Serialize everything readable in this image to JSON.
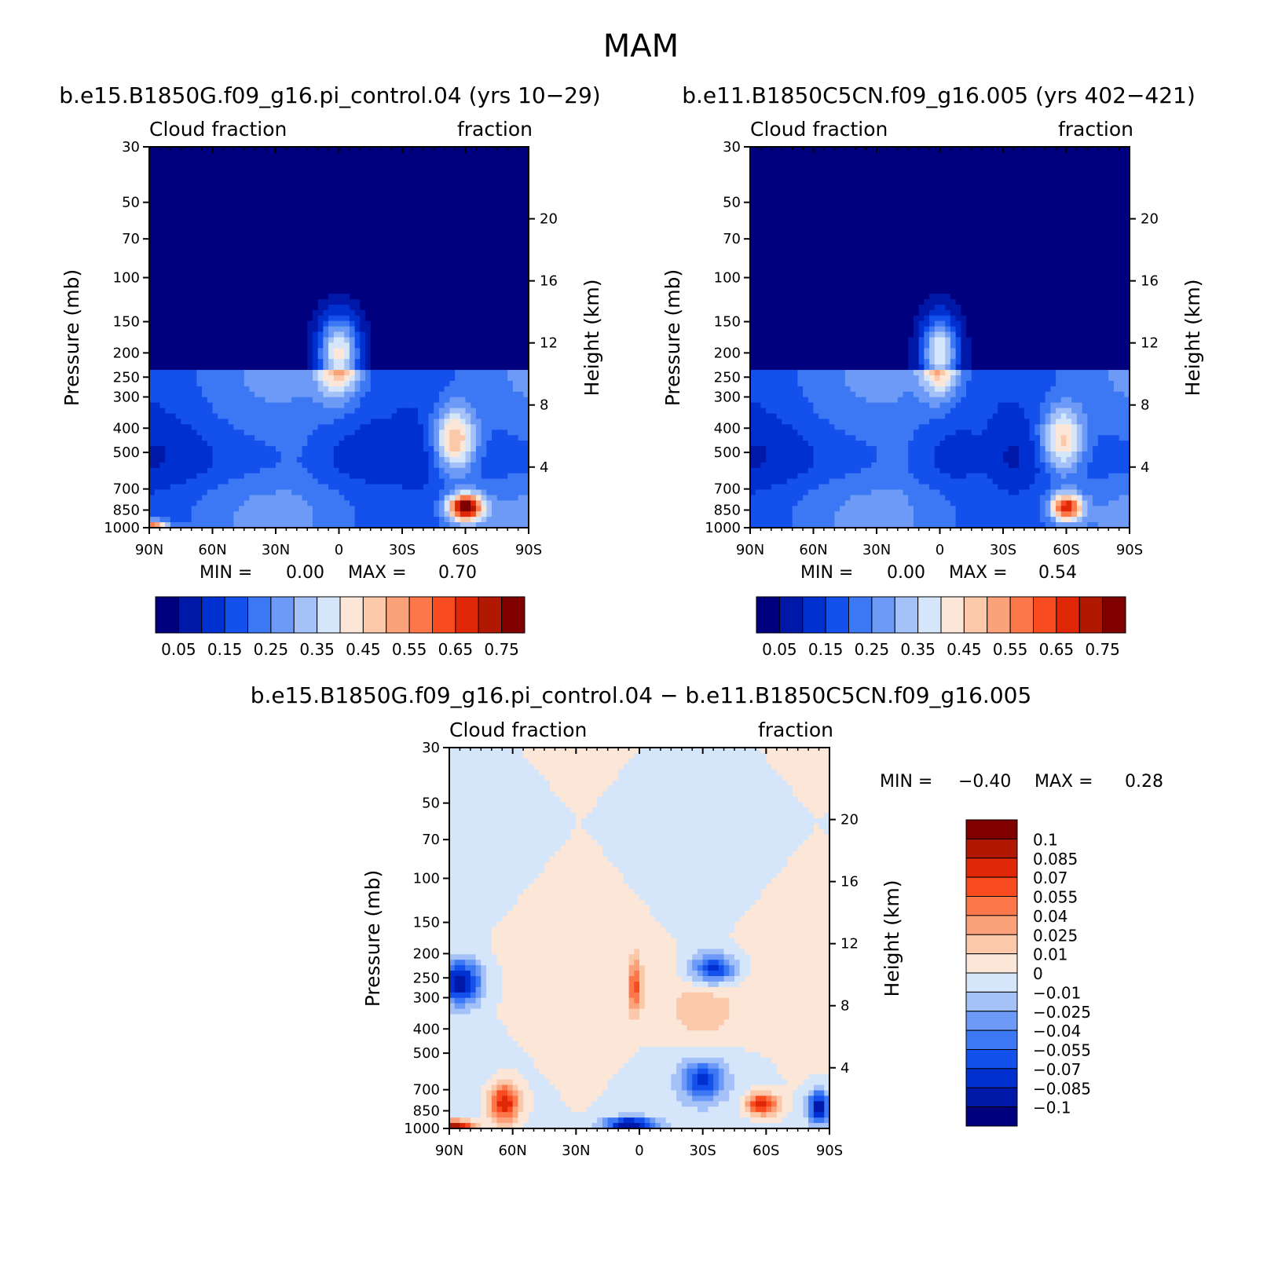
{
  "figure": {
    "season": "MAM",
    "diff_title": "b.e15.B1850G.f09_g16.pi_control.04 − b.e11.B1850C5CN.f09_g16.005"
  },
  "panels": [
    {
      "title": "b.e15.B1850G.f09_g16.pi_control.04 (yrs 10−29)",
      "left_string": "Cloud fraction",
      "right_string": "fraction",
      "min_label": "MIN =",
      "min_value": "0.00",
      "max_label": "MAX =",
      "max_value": "0.70"
    },
    {
      "title": "b.e11.B1850C5CN.f09_g16.005 (yrs 402−421)",
      "left_string": "Cloud fraction",
      "right_string": "fraction",
      "min_label": "MIN =",
      "min_value": "0.00",
      "max_label": "MAX =",
      "max_value": "0.54"
    },
    {
      "title": "b.e15.B1850G.f09_g16.pi_control.04 − b.e11.B1850C5CN.f09_g16.005",
      "left_string": "Cloud fraction",
      "right_string": "fraction",
      "min_label": "MIN =",
      "min_value": "−0.40",
      "max_label": "MAX =",
      "max_value": "0.28"
    }
  ],
  "axes": {
    "ylabel": "Pressure (mb)",
    "y2label": "Height (km)",
    "pressure_ticks": [
      "30",
      "50",
      "70",
      "100",
      "150",
      "200",
      "250",
      "300",
      "400",
      "500",
      "700",
      "850",
      "1000"
    ],
    "pressure_values": [
      30,
      50,
      70,
      100,
      150,
      200,
      250,
      300,
      400,
      500,
      700,
      850,
      1000
    ],
    "height_ticks": [
      "20",
      "16",
      "12",
      "8",
      "4"
    ],
    "height_values": [
      20,
      16,
      12,
      8,
      4
    ],
    "lat_ticks": [
      "90N",
      "60N",
      "30N",
      "0",
      "30S",
      "60S",
      "90S"
    ],
    "lat_values": [
      90,
      60,
      30,
      0,
      -30,
      -60,
      -90
    ]
  },
  "colorbars": {
    "abs": {
      "colors": [
        "#00007f",
        "#0018a8",
        "#0030d0",
        "#1450ec",
        "#3c78f4",
        "#6c9af6",
        "#a4c2f8",
        "#d6e6fa",
        "#fbe6d8",
        "#fcc8aa",
        "#fca27a",
        "#fc784a",
        "#f84c20",
        "#e02808",
        "#b01802",
        "#800000"
      ],
      "labels": [
        "0.05",
        "0.15",
        "0.25",
        "0.35",
        "0.45",
        "0.55",
        "0.65",
        "0.75"
      ]
    },
    "diff": {
      "colors": [
        "#00007f",
        "#0018a8",
        "#0030d0",
        "#1450ec",
        "#3c78f4",
        "#6c9af6",
        "#a4c2f8",
        "#d6e6fa",
        "#fbe6d8",
        "#fcc8aa",
        "#fca27a",
        "#fc784a",
        "#f84c20",
        "#e02808",
        "#b01802",
        "#800000"
      ],
      "labels": [
        "0.1",
        "0.085",
        "0.07",
        "0.055",
        "0.04",
        "0.025",
        "0.01",
        "0",
        "−0.01",
        "−0.025",
        "−0.04",
        "−0.055",
        "−0.07",
        "−0.085",
        "−0.1"
      ]
    }
  },
  "chart_data": [
    {
      "type": "heatmap",
      "title": "b.e15.B1850G.f09_g16.pi_control.04 (yrs 10−29)",
      "xlabel": "",
      "ylabel": "Pressure (mb)",
      "y2label": "Height (km)",
      "xlim": [
        90,
        -90
      ],
      "ylim": [
        1000,
        30
      ],
      "yscale": "log",
      "min": 0.0,
      "max": 0.7,
      "features": [
        {
          "lat": 0,
          "p": 200,
          "value": 0.4,
          "wx": 10,
          "wp": 0.35
        },
        {
          "lat": -60,
          "p": 830,
          "value": 0.62,
          "wx": 8,
          "wp": 0.12
        },
        {
          "lat": 90,
          "p": 1000,
          "value": 0.5,
          "wx": 8,
          "wp": 0.06
        },
        {
          "lat": -55,
          "p": 450,
          "value": 0.36,
          "wx": 10,
          "wp": 0.3
        },
        {
          "lat": 20,
          "p": 500,
          "value": 0.02,
          "wx": 10,
          "wp": 0.4
        },
        {
          "lat": -25,
          "p": 520,
          "value": 0.03,
          "wx": 10,
          "wp": 0.4
        }
      ]
    },
    {
      "type": "heatmap",
      "title": "b.e11.B1850C5CN.f09_g16.005 (yrs 402−421)",
      "xlabel": "",
      "ylabel": "Pressure (mb)",
      "y2label": "Height (km)",
      "xlim": [
        90,
        -90
      ],
      "ylim": [
        1000,
        30
      ],
      "yscale": "log",
      "min": 0.0,
      "max": 0.54,
      "features": [
        {
          "lat": 0,
          "p": 200,
          "value": 0.38,
          "wx": 9,
          "wp": 0.35
        },
        {
          "lat": -60,
          "p": 830,
          "value": 0.5,
          "wx": 7,
          "wp": 0.12
        },
        {
          "lat": -58,
          "p": 450,
          "value": 0.32,
          "wx": 10,
          "wp": 0.3
        },
        {
          "lat": 20,
          "p": 500,
          "value": 0.03,
          "wx": 9,
          "wp": 0.4
        },
        {
          "lat": -20,
          "p": 520,
          "value": 0.04,
          "wx": 9,
          "wp": 0.4
        }
      ]
    },
    {
      "type": "heatmap",
      "title": "b.e15.B1850G.f09_g16.pi_control.04 − b.e11.B1850C5CN.f09_g16.005",
      "xlabel": "",
      "ylabel": "Pressure (mb)",
      "y2label": "Height (km)",
      "xlim": [
        90,
        -90
      ],
      "ylim": [
        1000,
        30
      ],
      "yscale": "log",
      "min": -0.4,
      "max": 0.28,
      "features": [
        {
          "lat": 88,
          "p": 1000,
          "value": 0.12,
          "wx": 10,
          "wp": 0.07
        },
        {
          "lat": 64,
          "p": 790,
          "value": 0.09,
          "wx": 7,
          "wp": 0.18
        },
        {
          "lat": -58,
          "p": 800,
          "value": 0.09,
          "wx": 7,
          "wp": 0.1
        },
        {
          "lat": 2,
          "p": 270,
          "value": 0.06,
          "wx": 3,
          "wp": 0.25
        },
        {
          "lat": -30,
          "p": 340,
          "value": 0.025,
          "wx": 18,
          "wp": 0.3
        },
        {
          "lat": 85,
          "p": 260,
          "value": -0.1,
          "wx": 10,
          "wp": 0.2
        },
        {
          "lat": -35,
          "p": 230,
          "value": -0.08,
          "wx": 10,
          "wp": 0.14
        },
        {
          "lat": 5,
          "p": 960,
          "value": -0.1,
          "wx": 12,
          "wp": 0.06
        },
        {
          "lat": -30,
          "p": 640,
          "value": -0.07,
          "wx": 10,
          "wp": 0.18
        },
        {
          "lat": -85,
          "p": 820,
          "value": -0.1,
          "wx": 5,
          "wp": 0.15
        }
      ]
    }
  ]
}
